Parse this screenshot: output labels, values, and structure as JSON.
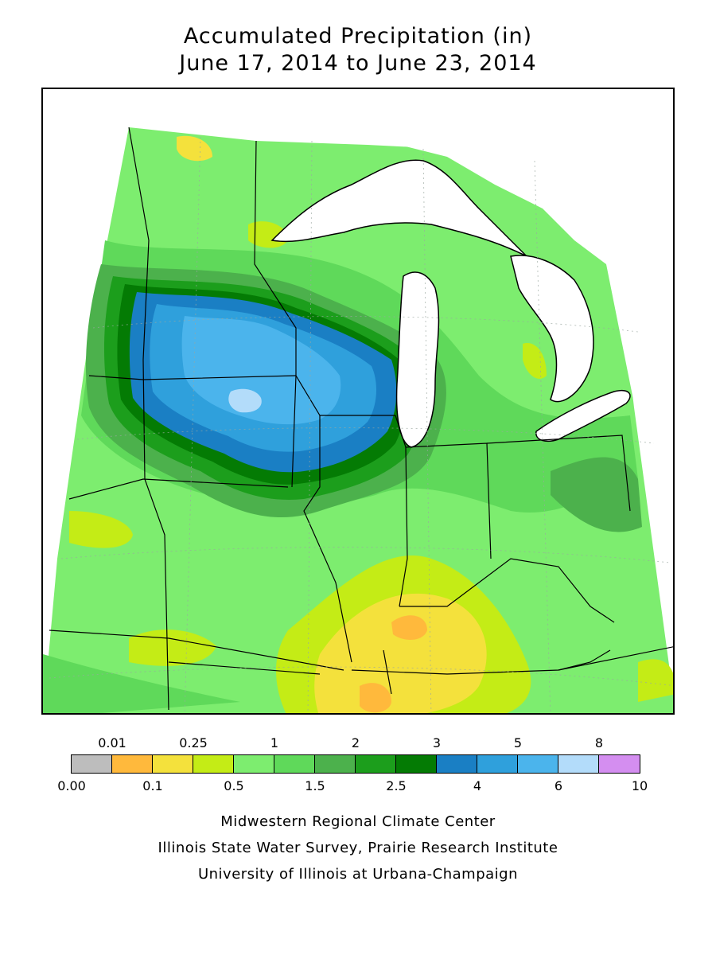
{
  "title": {
    "line1": "Accumulated Precipitation (in)",
    "line2": "June 17, 2014 to June 23, 2014"
  },
  "legend": {
    "colors": [
      "#bdbdbd",
      "#ffb93c",
      "#f4e13c",
      "#c4ec16",
      "#7ded6f",
      "#5fd95a",
      "#4cb14c",
      "#1c9e1c",
      "#047b04",
      "#1a7fc4",
      "#2fa0dc",
      "#4bb4ec",
      "#b3dcfa",
      "#d48ef0"
    ],
    "labels_bottom": [
      {
        "i": 0,
        "text": "0.00"
      },
      {
        "i": 2,
        "text": "0.1"
      },
      {
        "i": 4,
        "text": "0.5"
      },
      {
        "i": 6,
        "text": "1.5"
      },
      {
        "i": 8,
        "text": "2.5"
      },
      {
        "i": 10,
        "text": "4"
      },
      {
        "i": 12,
        "text": "6"
      },
      {
        "i": 14,
        "text": "10"
      }
    ],
    "labels_top": [
      {
        "i": 1,
        "text": "0.01"
      },
      {
        "i": 3,
        "text": "0.25"
      },
      {
        "i": 5,
        "text": "1"
      },
      {
        "i": 7,
        "text": "2"
      },
      {
        "i": 9,
        "text": "3"
      },
      {
        "i": 11,
        "text": "5"
      },
      {
        "i": 13,
        "text": "8"
      }
    ]
  },
  "credits": {
    "line1": "Midwestern Regional Climate Center",
    "line2": "Illinois State Water Survey, Prairie Research Institute",
    "line3": "University of Illinois at Urbana-Champaign"
  },
  "map": {
    "region_fill": "#7ded6f",
    "lake_fill": "#ffffff",
    "border_color": "#000000"
  }
}
